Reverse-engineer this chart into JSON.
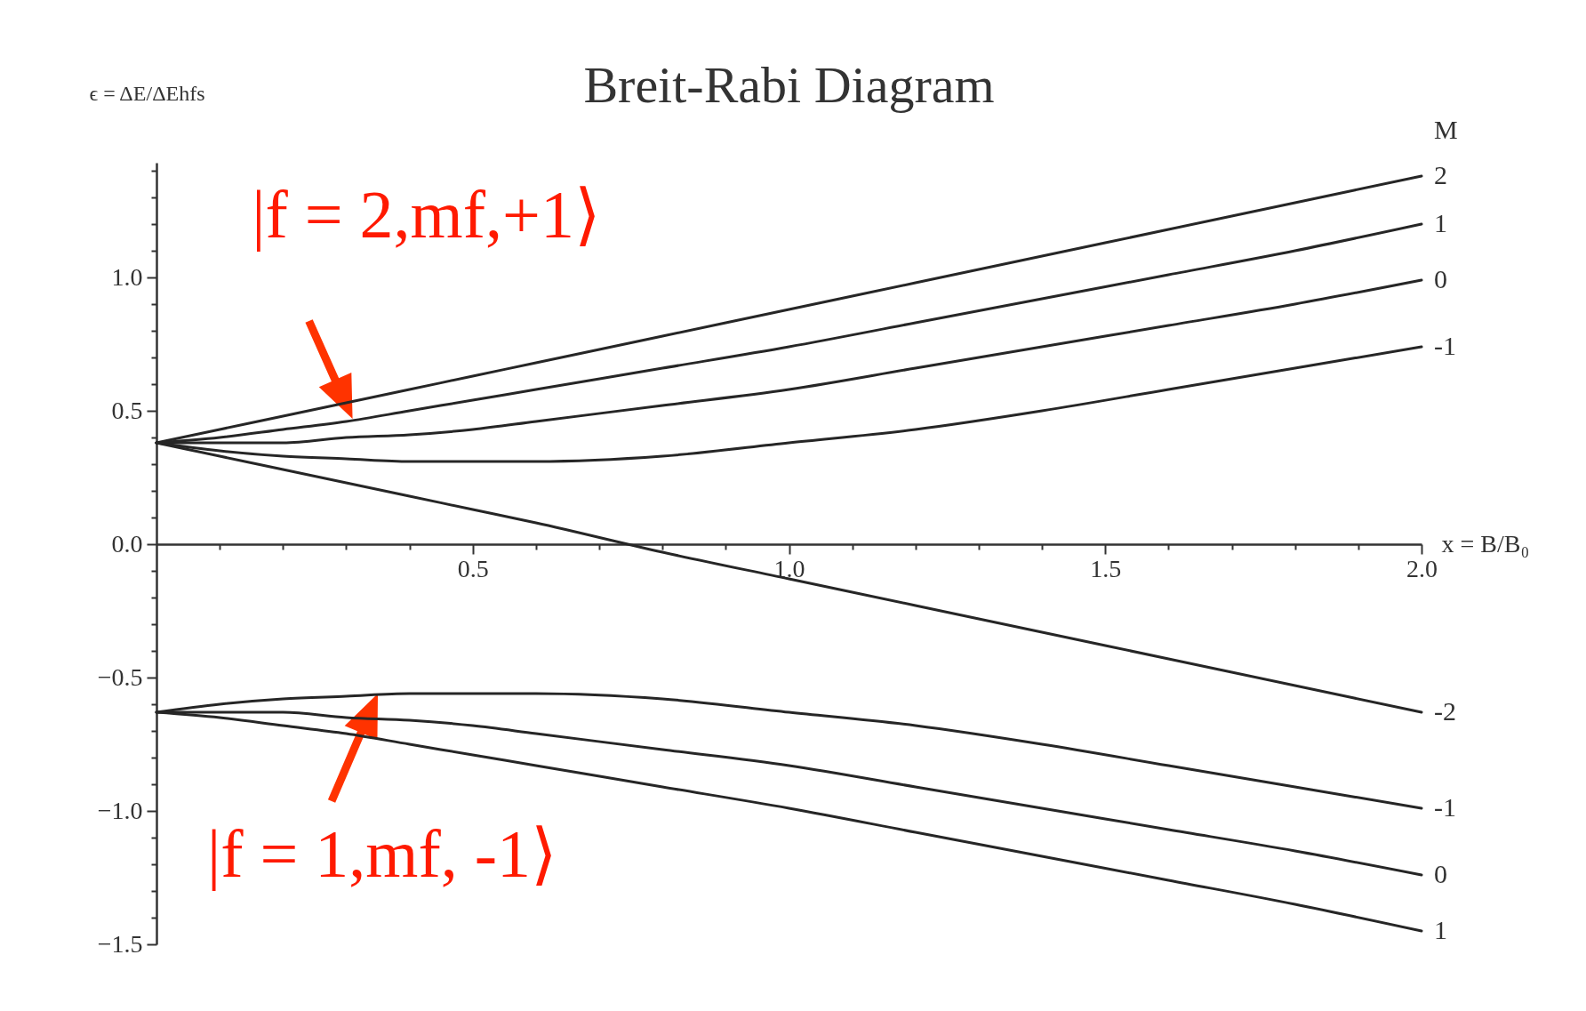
{
  "chart_data": {
    "type": "line",
    "title": "Breit-Rabi Diagram",
    "xlabel": "x = B/B₀",
    "ylabel": "ϵ = ΔE/ΔEhfs",
    "legend_title": "M",
    "x": [
      0,
      0.1,
      0.2,
      0.3,
      0.4,
      0.5,
      0.6,
      0.8,
      1.0,
      1.2,
      1.4,
      1.6,
      1.8,
      2.0
    ],
    "xlim": [
      0,
      2.0
    ],
    "ylim": [
      -1.5,
      1.43
    ],
    "xticks": [
      {
        "value": 0.1,
        "label": null
      },
      {
        "value": 0.2,
        "label": null
      },
      {
        "value": 0.3,
        "label": null
      },
      {
        "value": 0.4,
        "label": null
      },
      {
        "value": 0.5,
        "label": "0.5"
      },
      {
        "value": 0.6,
        "label": null
      },
      {
        "value": 0.7,
        "label": null
      },
      {
        "value": 0.8,
        "label": null
      },
      {
        "value": 0.9,
        "label": null
      },
      {
        "value": 1.0,
        "label": "1.0"
      },
      {
        "value": 1.1,
        "label": null
      },
      {
        "value": 1.2,
        "label": null
      },
      {
        "value": 1.3,
        "label": null
      },
      {
        "value": 1.4,
        "label": null
      },
      {
        "value": 1.5,
        "label": "1.5"
      },
      {
        "value": 1.6,
        "label": null
      },
      {
        "value": 1.7,
        "label": null
      },
      {
        "value": 1.8,
        "label": null
      },
      {
        "value": 1.9,
        "label": null
      },
      {
        "value": 2.0,
        "label": "2.0"
      }
    ],
    "yticks": [
      {
        "value": -1.5,
        "label": "−1.5"
      },
      {
        "value": -1.4,
        "label": null
      },
      {
        "value": -1.3,
        "label": null
      },
      {
        "value": -1.2,
        "label": null
      },
      {
        "value": -1.1,
        "label": null
      },
      {
        "value": -1.0,
        "label": "−1.0"
      },
      {
        "value": -0.9,
        "label": null
      },
      {
        "value": -0.8,
        "label": null
      },
      {
        "value": -0.7,
        "label": null
      },
      {
        "value": -0.6,
        "label": null
      },
      {
        "value": -0.5,
        "label": "−0.5"
      },
      {
        "value": -0.4,
        "label": null
      },
      {
        "value": -0.3,
        "label": null
      },
      {
        "value": -0.2,
        "label": null
      },
      {
        "value": -0.1,
        "label": null
      },
      {
        "value": 0,
        "label": "0.0"
      },
      {
        "value": 0.1,
        "label": null
      },
      {
        "value": 0.2,
        "label": null
      },
      {
        "value": 0.3,
        "label": null
      },
      {
        "value": 0.4,
        "label": null
      },
      {
        "value": 0.5,
        "label": "0.5"
      },
      {
        "value": 0.6,
        "label": null
      },
      {
        "value": 0.7,
        "label": null
      },
      {
        "value": 0.8,
        "label": null
      },
      {
        "value": 0.9,
        "label": null
      },
      {
        "value": 1.0,
        "label": "1.0"
      },
      {
        "value": 1.1,
        "label": null
      },
      {
        "value": 1.2,
        "label": null
      },
      {
        "value": 1.3,
        "label": null
      },
      {
        "value": 1.4,
        "label": null
      }
    ],
    "series": [
      {
        "name": "2",
        "color": "#262626",
        "values": [
          0.38,
          0.43,
          0.48,
          0.53,
          0.58,
          0.63,
          0.68,
          0.78,
          0.88,
          0.98,
          1.08,
          1.18,
          1.28,
          1.38
        ]
      },
      {
        "name": "1",
        "color": "#262626",
        "values": [
          0.38,
          0.4,
          0.43,
          0.46,
          0.5,
          0.54,
          0.58,
          0.66,
          0.74,
          0.83,
          0.92,
          1.01,
          1.1,
          1.2
        ]
      },
      {
        "name": "0",
        "color": "#262626",
        "values": [
          0.38,
          0.38,
          0.38,
          0.4,
          0.41,
          0.43,
          0.46,
          0.52,
          0.58,
          0.66,
          0.74,
          0.82,
          0.9,
          0.99
        ]
      },
      {
        "name": "-1",
        "color": "#262626",
        "values": [
          0.38,
          0.35,
          0.33,
          0.32,
          0.31,
          0.31,
          0.31,
          0.33,
          0.38,
          0.43,
          0.5,
          0.58,
          0.66,
          0.74
        ]
      },
      {
        "name": "-2",
        "color": "#262626",
        "values": [
          0.38,
          0.33,
          0.28,
          0.23,
          0.18,
          0.13,
          0.08,
          -0.03,
          -0.13,
          -0.23,
          -0.33,
          -0.43,
          -0.53,
          -0.63
        ]
      },
      {
        "name": "-1",
        "color": "#262626",
        "values": [
          -0.63,
          -0.6,
          -0.58,
          -0.57,
          -0.56,
          -0.56,
          -0.56,
          -0.58,
          -0.63,
          -0.68,
          -0.75,
          -0.83,
          -0.91,
          -0.99
        ]
      },
      {
        "name": "0",
        "color": "#262626",
        "values": [
          -0.63,
          -0.63,
          -0.63,
          -0.65,
          -0.66,
          -0.68,
          -0.71,
          -0.77,
          -0.83,
          -0.91,
          -0.99,
          -1.07,
          -1.15,
          -1.24
        ]
      },
      {
        "name": "1",
        "color": "#262626",
        "values": [
          -0.63,
          -0.65,
          -0.68,
          -0.71,
          -0.75,
          -0.79,
          -0.83,
          -0.91,
          -0.99,
          -1.08,
          -1.17,
          -1.26,
          -1.35,
          -1.45
        ]
      }
    ],
    "annotations": [
      {
        "text": "|f = 2,mf,+1⟩",
        "x": 0.31,
        "y": 0.47
      },
      {
        "text": "|f = 1,mf, -1⟩",
        "x": 0.35,
        "y": -0.56
      }
    ]
  }
}
